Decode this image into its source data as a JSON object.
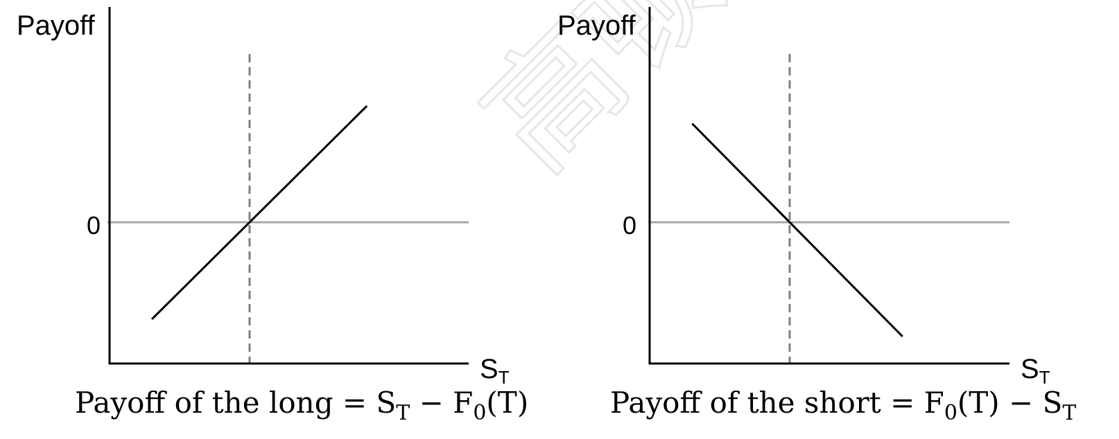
{
  "watermark": {
    "text": "高顿教育"
  },
  "chart_data": [
    {
      "type": "line",
      "position": "left",
      "title": "",
      "ylabel": "Payoff",
      "xlabel": "S",
      "xlabel_sub": "T",
      "y_ticks": [
        "0"
      ],
      "reference_line": {
        "style": "dashed",
        "x": 0,
        "meaning": "F0(T)"
      },
      "series": [
        {
          "points": [
            [
              -1,
              -1
            ],
            [
              1.2,
              1.2
            ]
          ]
        }
      ],
      "xlim": [
        -1.4,
        2.1
      ],
      "ylim": [
        -1.4,
        1.4
      ],
      "caption": {
        "prefix": "Payoff of the long = S",
        "prefix_sub": "T",
        "middle": " − F",
        "middle_sub": "0",
        "suffix": "(T)"
      }
    },
    {
      "type": "line",
      "position": "right",
      "title": "",
      "ylabel": "Payoff",
      "xlabel": "S",
      "xlabel_sub": "T",
      "y_ticks": [
        "0"
      ],
      "reference_line": {
        "style": "dashed",
        "x": 0,
        "meaning": "F0(T)"
      },
      "series": [
        {
          "points": [
            [
              -0.95,
              0.95
            ],
            [
              1.1,
              -1.1
            ]
          ]
        }
      ],
      "xlim": [
        -1.4,
        2.2
      ],
      "ylim": [
        -1.4,
        1.4
      ],
      "caption": {
        "prefix": "Payoff of the short = F",
        "prefix_sub": "0",
        "middle": "(T)  − S",
        "middle_sub": "T",
        "suffix": ""
      }
    }
  ],
  "colors": {
    "axis": "#000000",
    "zero_line": "#a6a6a6",
    "dashed_line": "#7f7f7f",
    "payoff_line": "#000000"
  }
}
